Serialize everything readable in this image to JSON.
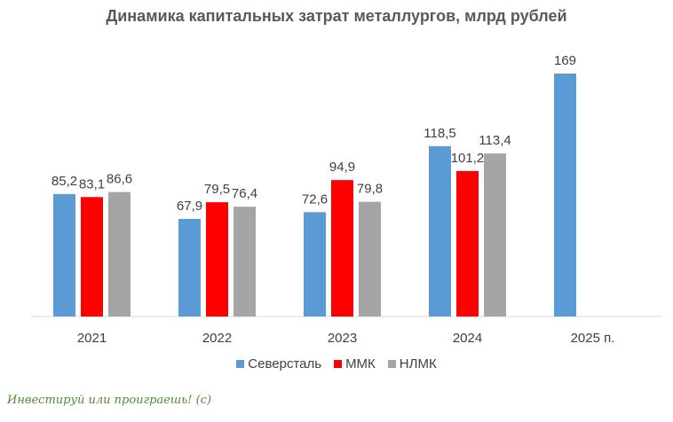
{
  "chart_data": {
    "type": "bar",
    "title": "Динамика капитальных затрат металлургов, млрд рублей",
    "categories": [
      "2021",
      "2022",
      "2023",
      "2024",
      "2025 п."
    ],
    "series": [
      {
        "name": "Северсталь",
        "color": "#5b9bd5",
        "values": [
          85.2,
          67.9,
          72.6,
          118.5,
          169
        ],
        "labels": [
          "85,2",
          "67,9",
          "72,6",
          "118,5",
          "169"
        ]
      },
      {
        "name": "ММК",
        "color": "#ff0000",
        "values": [
          83.1,
          79.5,
          94.9,
          101.2,
          null
        ],
        "labels": [
          "83,1",
          "79,5",
          "94,9",
          "101,2",
          null
        ]
      },
      {
        "name": "НЛМК",
        "color": "#a5a5a5",
        "values": [
          86.6,
          76.4,
          79.8,
          113.4,
          null
        ],
        "labels": [
          "86,6",
          "76,4",
          "79,8",
          "113,4",
          null
        ]
      }
    ],
    "ylim": [
      0,
      169
    ],
    "grid": false,
    "legend": "bottom"
  },
  "watermark": "Инвестируй или проиграешь! (с)"
}
